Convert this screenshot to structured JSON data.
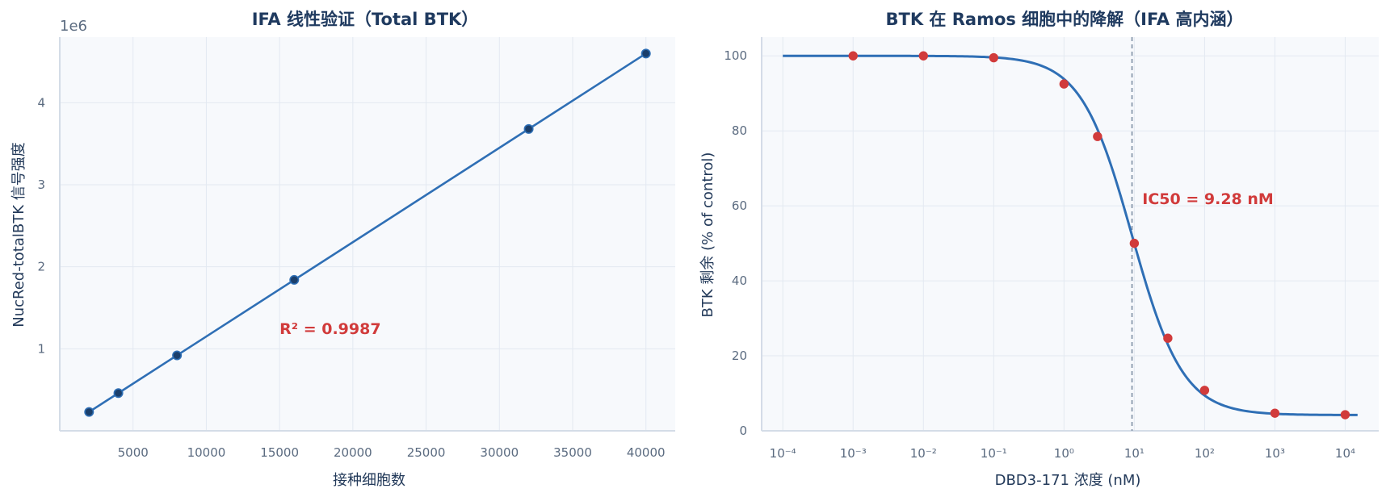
{
  "colors": {
    "plot_bg": "#f7f9fc",
    "grid": "#e3e9f1",
    "spine": "#d4dce7",
    "line": "#2f6fb5",
    "marker_fill": "#1b3f6b",
    "red": "#d13b3b",
    "vline": "#7d8ea3"
  },
  "chart_data": [
    {
      "type": "line",
      "title": "IFA 线性验证（Total BTK）",
      "xlabel": "接种细胞数",
      "ylabel": "NucRed-totalBTK 信号强度",
      "y_offset_label": "1e6",
      "xlim": [
        0,
        42000
      ],
      "ylim": [
        0,
        4.8
      ],
      "xticks": [
        5000,
        10000,
        15000,
        20000,
        25000,
        30000,
        35000,
        40000
      ],
      "yticks": [
        1,
        2,
        3,
        4
      ],
      "grid": true,
      "series": [
        {
          "x": [
            2000,
            4000,
            8000,
            16000,
            32000,
            40000
          ],
          "y": [
            0.23,
            0.46,
            0.92,
            1.84,
            3.68,
            4.6
          ]
        }
      ],
      "annotation": {
        "text": "R² = 0.9987",
        "x": 15000,
        "y": 1.25
      }
    },
    {
      "type": "scatter",
      "title": "BTK 在 Ramos 细胞中的降解（IFA 高内涵）",
      "xlabel": "DBD3-171 浓度 (nM)",
      "ylabel": "BTK 剩余 (% of control)",
      "x_scale": "log",
      "xlim": [
        5e-05,
        30000
      ],
      "ylim": [
        0,
        105
      ],
      "xticks": [
        "10⁻⁴",
        "10⁻³",
        "10⁻²",
        "10⁻¹",
        "10⁰",
        "10¹",
        "10²",
        "10³",
        "10⁴"
      ],
      "yticks": [
        0,
        20,
        40,
        60,
        80,
        100
      ],
      "grid": true,
      "points": {
        "x": [
          0.001,
          0.01,
          0.1,
          1,
          3,
          10,
          30,
          100,
          1000,
          10000
        ],
        "y": [
          100,
          100,
          99.5,
          92.5,
          78.5,
          50,
          24.7,
          10.8,
          4.7,
          4.3
        ]
      },
      "fit_curve": {
        "top": 100,
        "bottom": 4.2,
        "ic50_nM": 9.28,
        "hill": 1.2,
        "x_range": [
          0.0001,
          15000
        ]
      },
      "ic50_line_x": 9.28,
      "annotation": {
        "text": "IC50 = 9.28 nM",
        "x": 13,
        "y": 62
      }
    }
  ]
}
